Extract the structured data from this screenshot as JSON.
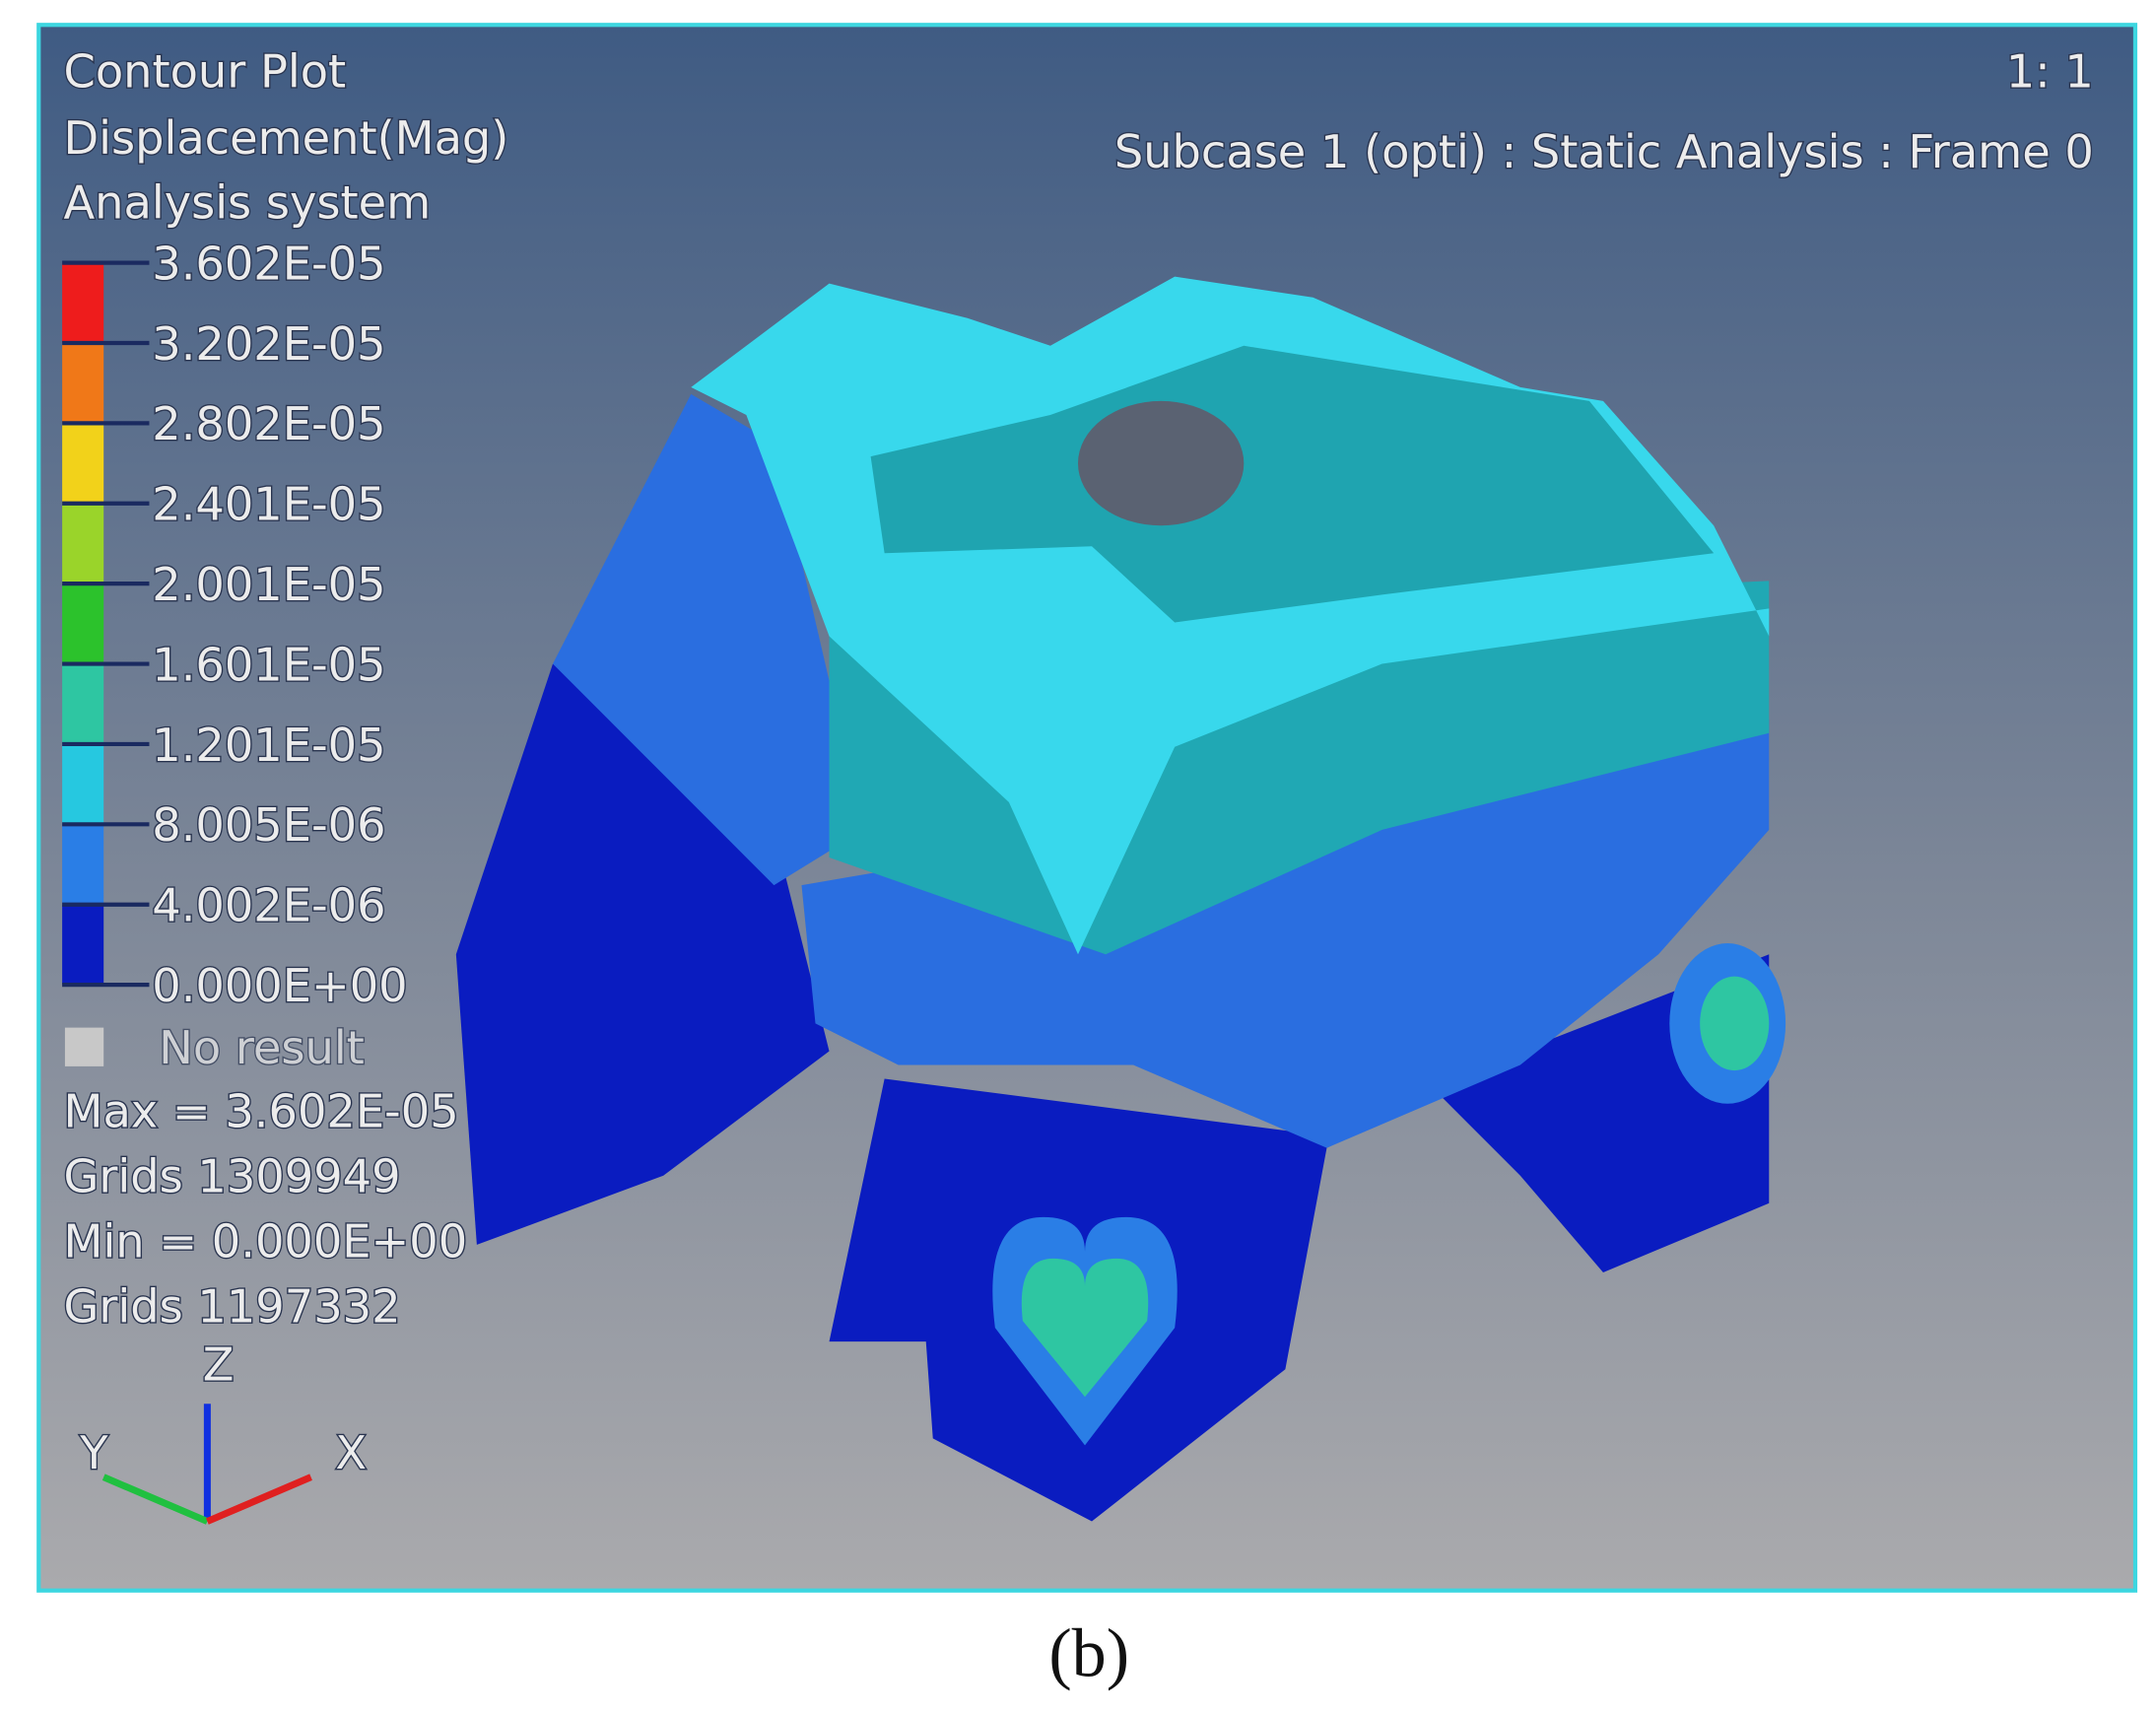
{
  "header": {
    "title": "Contour Plot",
    "result": "Displacement(Mag)",
    "system": "Analysis system",
    "scale": "1: 1",
    "subcase": "Subcase 1 (opti) : Static Analysis : Frame 0"
  },
  "legend": {
    "levels": [
      "3.602E-05",
      "3.202E-05",
      "2.802E-05",
      "2.401E-05",
      "2.001E-05",
      "1.601E-05",
      "1.201E-05",
      "8.005E-06",
      "4.002E-06",
      "0.000E+00"
    ],
    "colors": [
      "#ee1c1c",
      "#f07818",
      "#f2d21a",
      "#9ad42a",
      "#2cc22c",
      "#2ec6a2",
      "#26c8e0",
      "#2a7ee6",
      "#0a1cc0"
    ],
    "no_result": "No result",
    "no_result_color": "#c8c8c8"
  },
  "stats": [
    "Max = 3.602E-05",
    "Grids 1309949",
    "Min = 0.000E+00",
    "Grids 1197332"
  ],
  "axes": {
    "z": "Z",
    "y": "Y",
    "x": "X"
  },
  "caption": "(b)"
}
